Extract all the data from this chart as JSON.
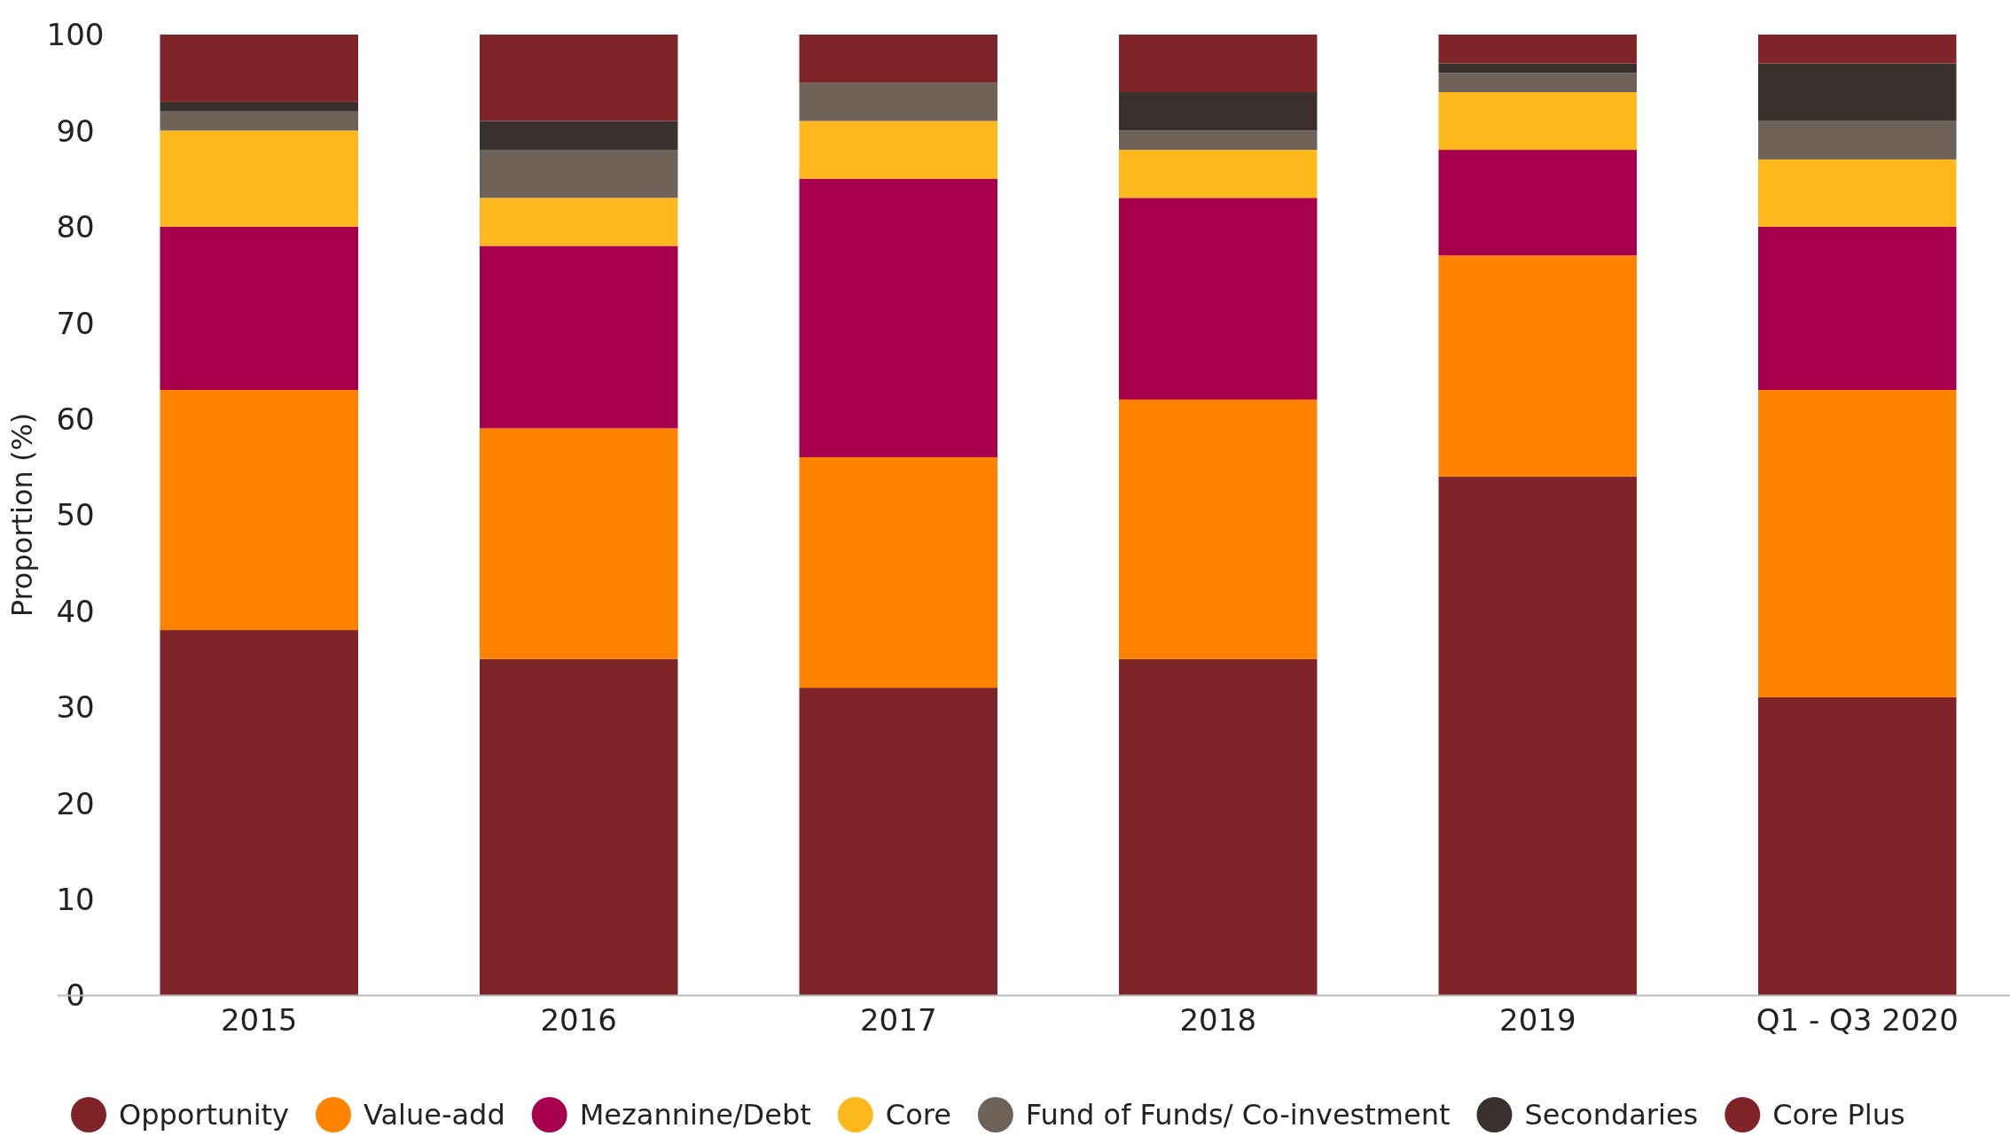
{
  "chart_data": {
    "type": "bar",
    "stacked": true,
    "ylabel": "Proportion (%)",
    "categories": [
      "2015",
      "2016",
      "2017",
      "2018",
      "2019",
      "Q1 - Q3 2020"
    ],
    "series": [
      {
        "name": "Opportunity",
        "color": "#7f2428",
        "values": [
          38,
          35,
          32,
          35,
          54,
          31
        ]
      },
      {
        "name": "Value-add",
        "color": "#ff8200",
        "values": [
          25,
          24,
          24,
          27,
          23,
          32
        ]
      },
      {
        "name": "Mezannine/Debt",
        "color": "#a6004e",
        "values": [
          17,
          19,
          29,
          21,
          11,
          17
        ]
      },
      {
        "name": "Core",
        "color": "#ffb81c",
        "values": [
          10,
          5,
          6,
          5,
          6,
          7
        ]
      },
      {
        "name": "Fund of Funds/ Co-investment",
        "color": "#6e6259",
        "values": [
          2,
          5,
          4,
          2,
          2,
          4
        ]
      },
      {
        "name": "Secondaries",
        "color": "#3a302e",
        "values": [
          1,
          3,
          0,
          4,
          1,
          6
        ]
      },
      {
        "name": "Core Plus",
        "color": "#7f2428",
        "values": [
          7,
          9,
          5,
          6,
          3,
          3
        ]
      }
    ],
    "ylim": [
      0,
      100
    ],
    "yticks": [
      0,
      10,
      20,
      30,
      40,
      50,
      60,
      70,
      80,
      90,
      100
    ],
    "legend": "bottom"
  }
}
